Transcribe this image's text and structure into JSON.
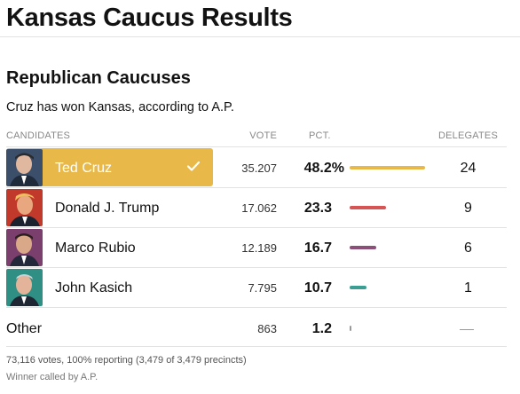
{
  "page": {
    "title": "Kansas Caucus Results"
  },
  "section": {
    "title": "Republican Caucuses",
    "status": "Cruz has won Kansas, according to A.P."
  },
  "table": {
    "headers": {
      "candidates": "CANDIDATES",
      "vote": "VOTE",
      "pct": "PCT.",
      "delegates": "DELEGATES"
    },
    "rows": [
      {
        "name": "Ted Cruz",
        "vote": "35.207",
        "pct": "48.2%",
        "pct_value": 48.2,
        "delegates": "24",
        "color": "#e8b949",
        "winner": true,
        "photo_bg": "#3b4f6a"
      },
      {
        "name": "Donald J. Trump",
        "vote": "17.062",
        "pct": "23.3",
        "pct_value": 23.3,
        "delegates": "9",
        "color": "#d65454",
        "winner": false,
        "photo_bg": "#c0392b"
      },
      {
        "name": "Marco Rubio",
        "vote": "12.189",
        "pct": "16.7",
        "pct_value": 16.7,
        "delegates": "6",
        "color": "#8b4f7a",
        "winner": false,
        "photo_bg": "#7b3f6e"
      },
      {
        "name": "John Kasich",
        "vote": "7.795",
        "pct": "10.7",
        "pct_value": 10.7,
        "delegates": "1",
        "color": "#3b9e92",
        "winner": false,
        "photo_bg": "#2f8f84"
      }
    ],
    "other": {
      "name": "Other",
      "vote": "863",
      "pct": "1.2",
      "pct_value": 1.2,
      "color": "#999999"
    }
  },
  "footer": {
    "summary": "73,116 votes, 100% reporting (3,479 of 3,479 precincts)",
    "note": "Winner called by A.P."
  }
}
